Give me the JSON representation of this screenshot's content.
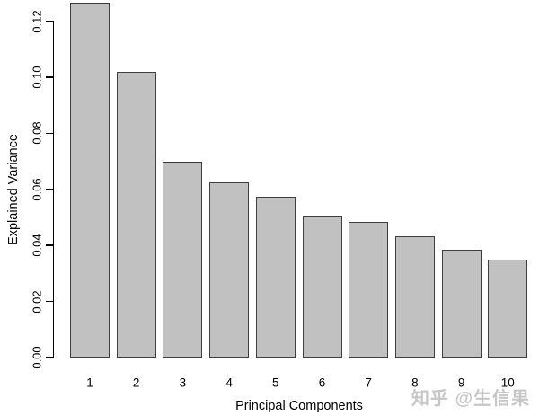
{
  "chart_data": {
    "type": "bar",
    "title": "",
    "xlabel": "Principal Components",
    "ylabel": "Explained Variance",
    "categories": [
      "1",
      "2",
      "3",
      "4",
      "5",
      "6",
      "7",
      "8",
      "9",
      "10"
    ],
    "values": [
      0.1265,
      0.102,
      0.0698,
      0.0624,
      0.0573,
      0.0504,
      0.0484,
      0.0433,
      0.0384,
      0.0349
    ],
    "ylim": [
      0,
      0.12
    ],
    "yticks": [
      0.0,
      0.02,
      0.04,
      0.06,
      0.08,
      0.1,
      0.12
    ],
    "ytick_label_format": "2dp",
    "grid": false,
    "legend": null,
    "bar_fill_color": "#c1c1c1",
    "bar_border_color": "#3e3e3e",
    "axis_color": "#000000"
  },
  "watermark": {
    "text": "知乎 @生信果",
    "color": "#c7c7c7"
  }
}
